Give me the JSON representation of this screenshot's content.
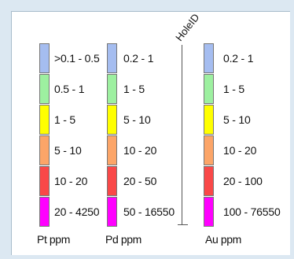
{
  "colors": {
    "c1": "#a5bdf0",
    "c2": "#9df0a0",
    "c3": "#ffff00",
    "c4": "#fca568",
    "c5": "#f94848",
    "c6": "#ff00ff"
  },
  "hole_label": "HoleID",
  "legends": {
    "pt": {
      "title": "Pt ppm",
      "ranges": [
        ">0.1 - 0.5",
        "0.5 - 1",
        "1 - 5",
        "5 - 10",
        "10 - 20",
        "20 - 4250"
      ]
    },
    "pd": {
      "title": "Pd ppm",
      "ranges": [
        "0.2 - 1",
        "1 - 5",
        "5 - 10",
        "10 - 20",
        "20 - 50",
        "50 - 16550"
      ]
    },
    "au": {
      "title": "Au ppm",
      "ranges": [
        "0.2 - 1",
        "1 - 5",
        "5 - 10",
        "10 - 20",
        "20 - 100",
        "100 - 76550"
      ]
    }
  }
}
